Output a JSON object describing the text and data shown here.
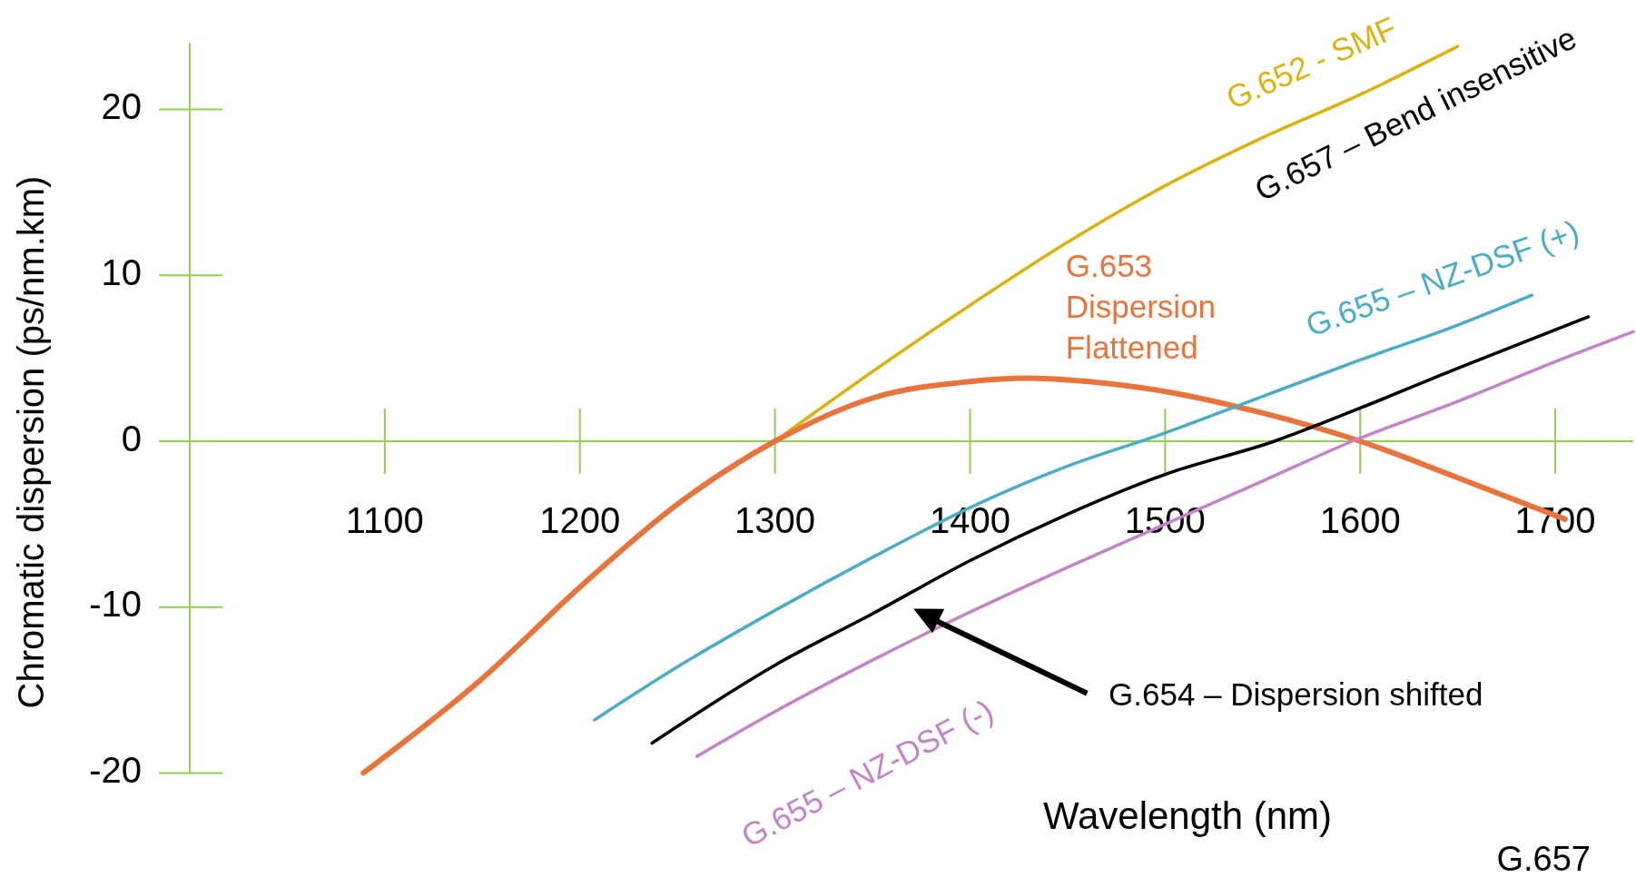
{
  "chart_data": {
    "type": "line",
    "xlabel": "Wavelength (nm)",
    "ylabel": "Chromatic dispersion  (ps/nm.km)",
    "xlim": [
      1000,
      1740
    ],
    "ylim": [
      -20,
      24
    ],
    "xticks": [
      1100,
      1200,
      1300,
      1400,
      1500,
      1600,
      1700
    ],
    "yticks": [
      -20,
      -10,
      0,
      10,
      20
    ],
    "grid": false,
    "marker": "none",
    "line_style": "solid",
    "series": [
      {
        "name": "G.652 - SMF",
        "color": "#dbb10c",
        "x": [
          1300,
          1350,
          1400,
          1450,
          1500,
          1550,
          1600,
          1650
        ],
        "values": [
          0,
          4.2,
          8.2,
          12,
          15.4,
          18.3,
          20.9,
          23.8
        ]
      },
      {
        "name": "G.653 Dispersion Flattened",
        "color": "#e8743b",
        "x": [
          1089,
          1150,
          1200,
          1250,
          1300,
          1350,
          1400,
          1429,
          1450,
          1500,
          1550,
          1600,
          1650,
          1705
        ],
        "values": [
          -20,
          -14.3,
          -8.8,
          -3.8,
          0,
          2.6,
          3.6,
          3.8,
          3.7,
          3.0,
          1.7,
          0,
          -2.2,
          -4.7
        ]
      },
      {
        "name": "G.655 – NZ-DSF (+)",
        "color": "#4bacc6",
        "x": [
          1207.5,
          1250,
          1300,
          1350,
          1400,
          1450,
          1500,
          1550,
          1600,
          1650,
          1688
        ],
        "values": [
          -16.8,
          -13.6,
          -10.2,
          -7.0,
          -4.0,
          -1.5,
          0.5,
          2.7,
          4.9,
          7.0,
          8.8
        ]
      },
      {
        "name": "G.654 – Dispersion shifted",
        "color": "#000000",
        "x": [
          1237,
          1300,
          1350,
          1400,
          1450,
          1500,
          1556,
          1600,
          1650,
          1717
        ],
        "values": [
          -18.2,
          -13.5,
          -10.4,
          -7.2,
          -4.4,
          -2.0,
          0,
          2.0,
          4.4,
          7.5
        ]
      },
      {
        "name": "G.655 – NZ-DSF (-)",
        "color": "#c283c8",
        "x": [
          1260,
          1300,
          1350,
          1400,
          1450,
          1500,
          1550,
          1596,
          1650,
          1700,
          1740
        ],
        "values": [
          -19.0,
          -16.3,
          -13.2,
          -10.3,
          -7.6,
          -5.0,
          -2.4,
          0,
          2.4,
          4.8,
          6.6
        ]
      }
    ],
    "annotations": [
      "G.657 – Bend insensitive",
      "G.657"
    ]
  }
}
